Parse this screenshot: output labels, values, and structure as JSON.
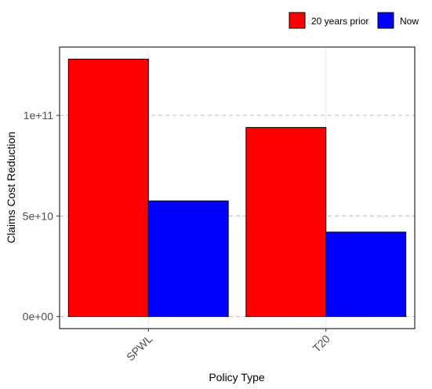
{
  "chart_data": {
    "type": "bar",
    "title": "",
    "xlabel": "Policy Type",
    "ylabel": "Claims Cost Reduction",
    "categories": [
      "SPWL",
      "T20"
    ],
    "series": [
      {
        "name": "20 years prior",
        "color": "#ff0000",
        "values": [
          128000000000,
          94000000000
        ]
      },
      {
        "name": "Now",
        "color": "#0000ff",
        "values": [
          57500000000,
          42000000000
        ]
      }
    ],
    "y_ticks": [
      {
        "value": 0,
        "label": "0e+00"
      },
      {
        "value": 50000000000,
        "label": "5e+10"
      },
      {
        "value": 100000000000,
        "label": "1e+11"
      }
    ],
    "ylim": [
      -6000000000,
      134000000000
    ],
    "grid": "horizontal dashed",
    "legend_position": "top-right",
    "x_tick_rotation_deg": 45
  }
}
